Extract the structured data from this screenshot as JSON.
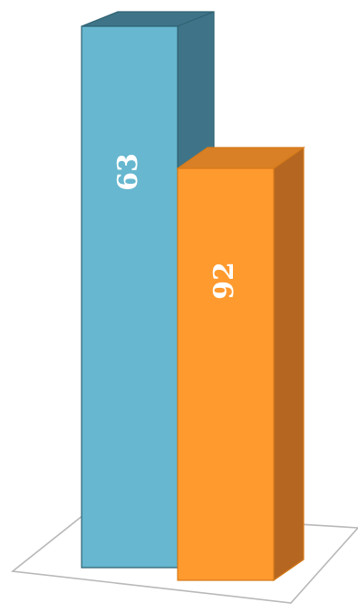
{
  "chart_data": {
    "type": "bar",
    "categories": [
      "",
      ""
    ],
    "values": [
      63,
      92
    ],
    "data_labels": [
      "63",
      "92"
    ],
    "title": "",
    "xlabel": "",
    "ylabel": "",
    "colors": {
      "bar1_front": "#66b7cf",
      "bar1_side": "#3f7488",
      "bar1_top": "#3f7488",
      "bar2_front": "#ff9a2f",
      "bar2_side": "#b56721",
      "bar2_top": "#d97f25"
    }
  }
}
